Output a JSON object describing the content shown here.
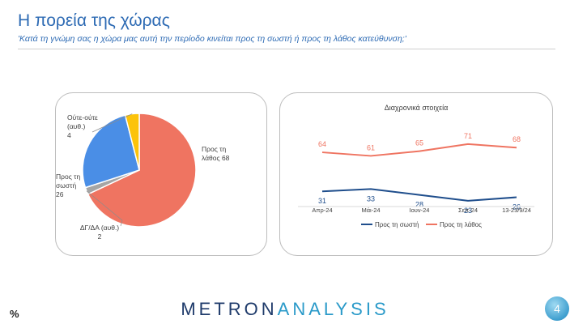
{
  "header": {
    "title": "Η πορεία της χώρας",
    "subtitle": "'Κατά τη γνώμη σας η χώρα μας αυτή την περίοδο κινείται προς τη σωστή ή προς τη λάθος κατεύθυνση;'"
  },
  "footer": {
    "percent_sign": "%",
    "brand_part1": "METRON",
    "brand_part2": "ANALYSIS",
    "page_number": "4"
  },
  "chart_data": [
    {
      "type": "pie",
      "title": "",
      "slices": [
        {
          "label_lines": [
            "Προς τη",
            "λάθος 68"
          ],
          "value": 68,
          "color": "#ef7461"
        },
        {
          "label_lines": [
            "ΔΓ/ΔΑ (αυθ.)",
            "2"
          ],
          "value": 2,
          "color": "#a5a5a5"
        },
        {
          "label_lines": [
            "Προς τη",
            "σωστή",
            "26"
          ],
          "value": 26,
          "color": "#4a8ee6"
        },
        {
          "label_lines": [
            "Ούτε-ούτε",
            "(αυθ.)",
            "4"
          ],
          "value": 4,
          "color": "#fcc30a"
        }
      ]
    },
    {
      "type": "line",
      "title": "Διαχρονικά στοιχεία",
      "categories": [
        "Απρ-24",
        "Μάι-24",
        "Ιουν-24",
        "Σεπ-24",
        "13-23/9/24"
      ],
      "series": [
        {
          "name": "Προς τη σωστή",
          "values": [
            31,
            33,
            28,
            23,
            26
          ],
          "color": "#1f4e8c"
        },
        {
          "name": "Προς τη λάθος",
          "values": [
            64,
            61,
            65,
            71,
            68
          ],
          "color": "#ef7461"
        }
      ],
      "legend": "bottom",
      "grid": false
    }
  ]
}
